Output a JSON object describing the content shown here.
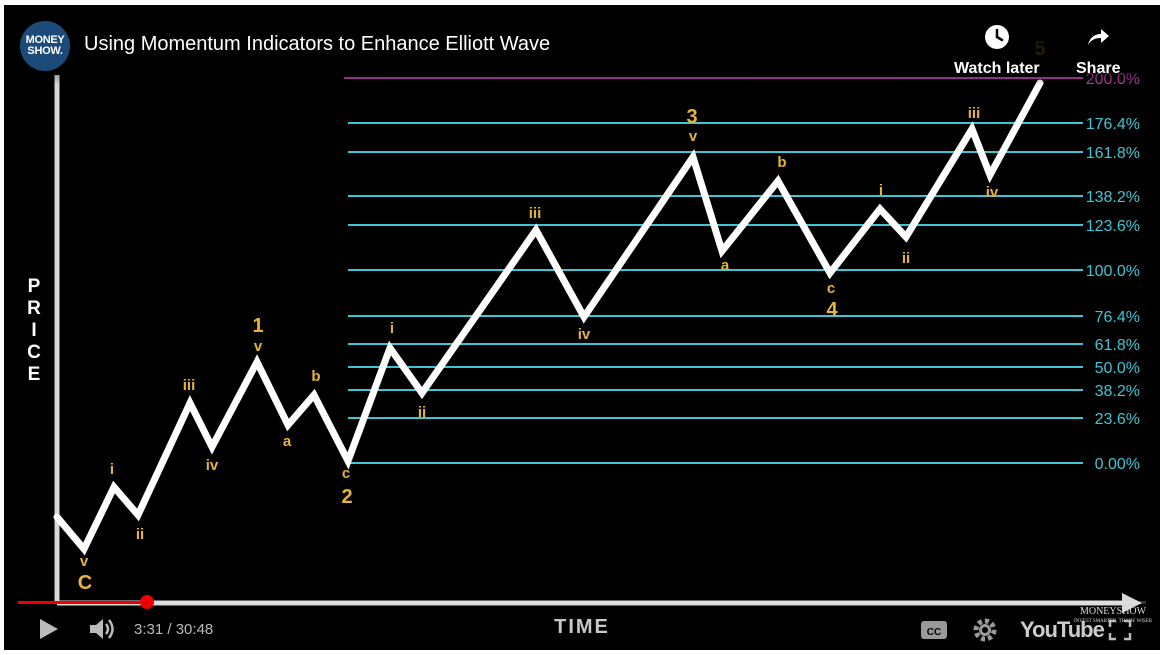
{
  "header": {
    "channel_logo_line1": "MONEY",
    "channel_logo_line2": "SHOW.",
    "title": "Using Momentum Indicators to Enhance Elliott Wave",
    "watch_later_label": "Watch later",
    "share_label": "Share"
  },
  "colors": {
    "background": "#000000",
    "fib_line": "#3ec6d6",
    "fib_200_line": "#b23ba6",
    "wave_path": "#ffffff",
    "wave_label": "#e6b43a",
    "axis": "#d8d8d8"
  },
  "chart": {
    "y_axis_label": "PRICE",
    "x_axis_label": "TIME",
    "fib_levels": [
      {
        "label": "200.0%",
        "value": 200.0
      },
      {
        "label": "176.4%",
        "value": 176.4
      },
      {
        "label": "161.8%",
        "value": 161.8
      },
      {
        "label": "138.2%",
        "value": 138.2
      },
      {
        "label": "123.6%",
        "value": 123.6
      },
      {
        "label": "100.0%",
        "value": 100.0
      },
      {
        "label": "76.4%",
        "value": 76.4
      },
      {
        "label": "61.8%",
        "value": 61.8
      },
      {
        "label": "50.0%",
        "value": 50.0
      },
      {
        "label": "38.2%",
        "value": 38.2
      },
      {
        "label": "23.6%",
        "value": 23.6
      },
      {
        "label": "0.00%",
        "value": 0.0
      }
    ],
    "wave_labels": [
      {
        "text": "v",
        "major": false
      },
      {
        "text": "C",
        "major": true
      },
      {
        "text": "i",
        "major": false
      },
      {
        "text": "ii",
        "major": false
      },
      {
        "text": "iii",
        "major": false
      },
      {
        "text": "iv",
        "major": false
      },
      {
        "text": "1",
        "major": true
      },
      {
        "text": "v",
        "major": false
      },
      {
        "text": "a",
        "major": false
      },
      {
        "text": "b",
        "major": false
      },
      {
        "text": "c",
        "major": false
      },
      {
        "text": "2",
        "major": true
      },
      {
        "text": "i",
        "major": false
      },
      {
        "text": "ii",
        "major": false
      },
      {
        "text": "iii",
        "major": false
      },
      {
        "text": "iv",
        "major": false
      },
      {
        "text": "3",
        "major": true
      },
      {
        "text": "v",
        "major": false
      },
      {
        "text": "a",
        "major": false
      },
      {
        "text": "b",
        "major": false
      },
      {
        "text": "c",
        "major": false
      },
      {
        "text": "4",
        "major": true
      },
      {
        "text": "i",
        "major": false
      },
      {
        "text": "ii",
        "major": false
      },
      {
        "text": "iii",
        "major": false
      },
      {
        "text": "iv",
        "major": false
      },
      {
        "text": "5",
        "major": true
      }
    ]
  },
  "player": {
    "current_time": "3:31",
    "separator": " / ",
    "duration": "30:48",
    "progress": 0.114,
    "youtube_label": "YouTube",
    "watermark_line1": "MONEYSHOW",
    "watermark_line2": "INVEST SMARTER, TRADE WISER"
  }
}
